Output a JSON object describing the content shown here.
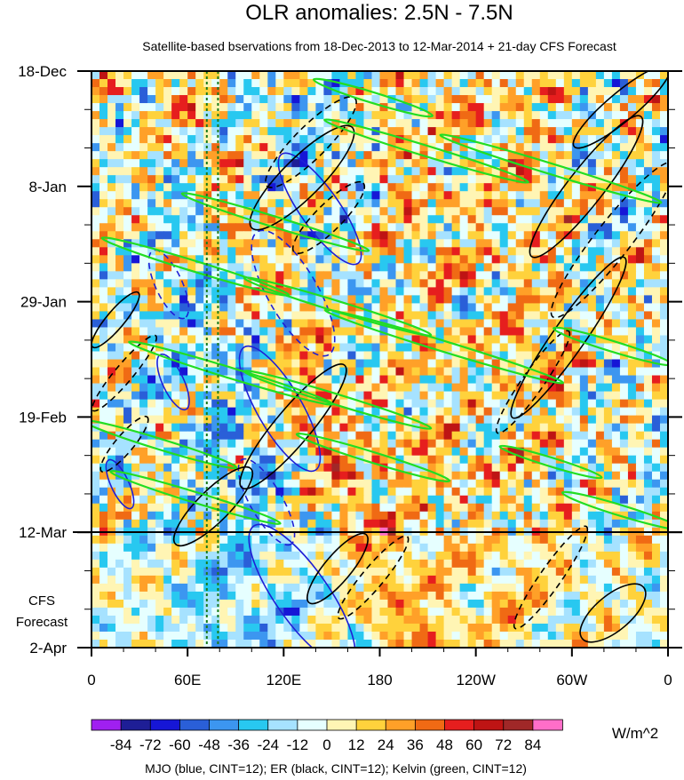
{
  "chart_data": {
    "type": "heatmap",
    "title": "OLR anomalies: 2.5N - 7.5N",
    "subtitle": "Satellite-based bservations from 18-Dec-2013 to 12-Mar-2014 + 21-day CFS Forecast",
    "x_tick_labels": [
      "0",
      "60E",
      "120E",
      "180",
      "120W",
      "60W",
      "0"
    ],
    "x_tick_longitudes": [
      0,
      60,
      120,
      180,
      240,
      300,
      360
    ],
    "y_tick_labels": [
      "18-Dec",
      "8-Jan",
      "29-Jan",
      "19-Feb",
      "12-Mar",
      "2-Apr"
    ],
    "y_tick_days": [
      0,
      21,
      42,
      63,
      84,
      105
    ],
    "forecast_label_lines": [
      "CFS",
      "Forecast"
    ],
    "forecast_start_day": 84,
    "reference_lines_lon": [
      72,
      79
    ],
    "colorbar": {
      "labels": [
        "-84",
        "-72",
        "-60",
        "-48",
        "-36",
        "-24",
        "-12",
        "0",
        "12",
        "24",
        "36",
        "48",
        "60",
        "72",
        "84"
      ],
      "colors": [
        "#a020f0",
        "#1e1e96",
        "#1616d6",
        "#2a5fd8",
        "#3c96f0",
        "#28c8f0",
        "#a6e2ff",
        "#e6ffff",
        "#fff5b4",
        "#ffd23c",
        "#ffa028",
        "#f06a14",
        "#e61e1e",
        "#be1414",
        "#a02828",
        "#ff6ec8"
      ],
      "units": "W/m^2"
    },
    "contour_note": "MJO (blue, CINT=12); ER (black, CINT=12); Kelvin (green, CINT=12)",
    "contour_colors": {
      "mjo": "#1f1fd6",
      "er": "#000000",
      "kelvin": "#22dd22"
    },
    "grid": false
  }
}
